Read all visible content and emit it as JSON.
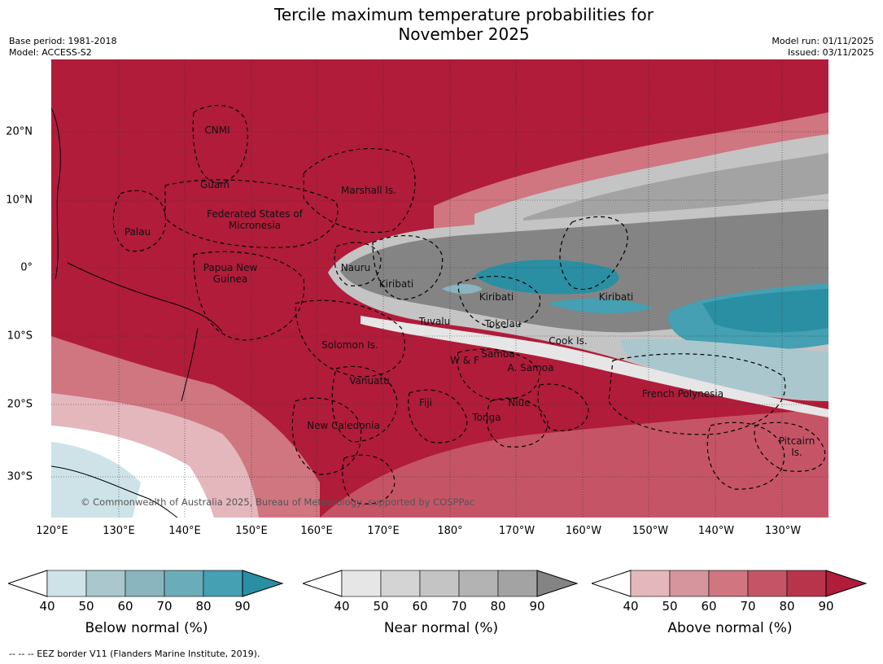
{
  "header": {
    "title_line1": "Tercile maximum temperature probabilities for",
    "title_line2": "November 2025",
    "base_period": "Base period: 1981-2018",
    "model": "Model: ACCESS-S2",
    "model_run": "Model run: 01/11/2025",
    "issued": "Issued: 03/11/2025"
  },
  "map": {
    "copyright": "© Commonwealth of Australia 2025, Bureau of Meteorology, supported by COSPPac",
    "lat_ticks": [
      "20°N",
      "10°N",
      "0°",
      "10°S",
      "20°S",
      "30°S"
    ],
    "lon_ticks": [
      "120°E",
      "130°E",
      "140°E",
      "150°E",
      "160°E",
      "170°E",
      "180°",
      "170°W",
      "160°W",
      "150°W",
      "140°W",
      "130°W"
    ],
    "regions": [
      "CNMI",
      "Guam",
      "Marshall Is.",
      "Palau",
      "Federated States of Micronesia",
      "Papua New Guinea",
      "Nauru",
      "Kiribati",
      "Kiribati",
      "Kiribati",
      "Tuvalu",
      "Tokelau",
      "Cook Is.",
      "Solomon Is.",
      "Samoa",
      "W & F",
      "A. Samoa",
      "Vanuatu",
      "Fiji",
      "Niue",
      "Tonga",
      "French Polynesia",
      "New Caledonia",
      "Pitcairn Is."
    ]
  },
  "colorbars": [
    {
      "label": "Below normal (%)",
      "ticks": [
        "40",
        "50",
        "60",
        "70",
        "80",
        "90"
      ],
      "colors": [
        "#cde3e8",
        "#a9c7cc",
        "#8ab4be",
        "#6aacb8",
        "#44a0b2",
        "#2a8fa3"
      ]
    },
    {
      "label": "Near normal (%)",
      "ticks": [
        "40",
        "50",
        "60",
        "70",
        "80",
        "90"
      ],
      "colors": [
        "#e6e6e6",
        "#d4d4d4",
        "#c4c4c4",
        "#b3b3b3",
        "#a3a3a3",
        "#848484"
      ]
    },
    {
      "label": "Above normal (%)",
      "ticks": [
        "40",
        "50",
        "60",
        "70",
        "80",
        "90"
      ],
      "colors": [
        "#e4b7bd",
        "#d6959d",
        "#cf7680",
        "#c55566",
        "#b8344b",
        "#b01c3a"
      ]
    }
  ],
  "footnote": "--  --  -- EEZ border V11 (Flanders Marine Institute, 2019)."
}
